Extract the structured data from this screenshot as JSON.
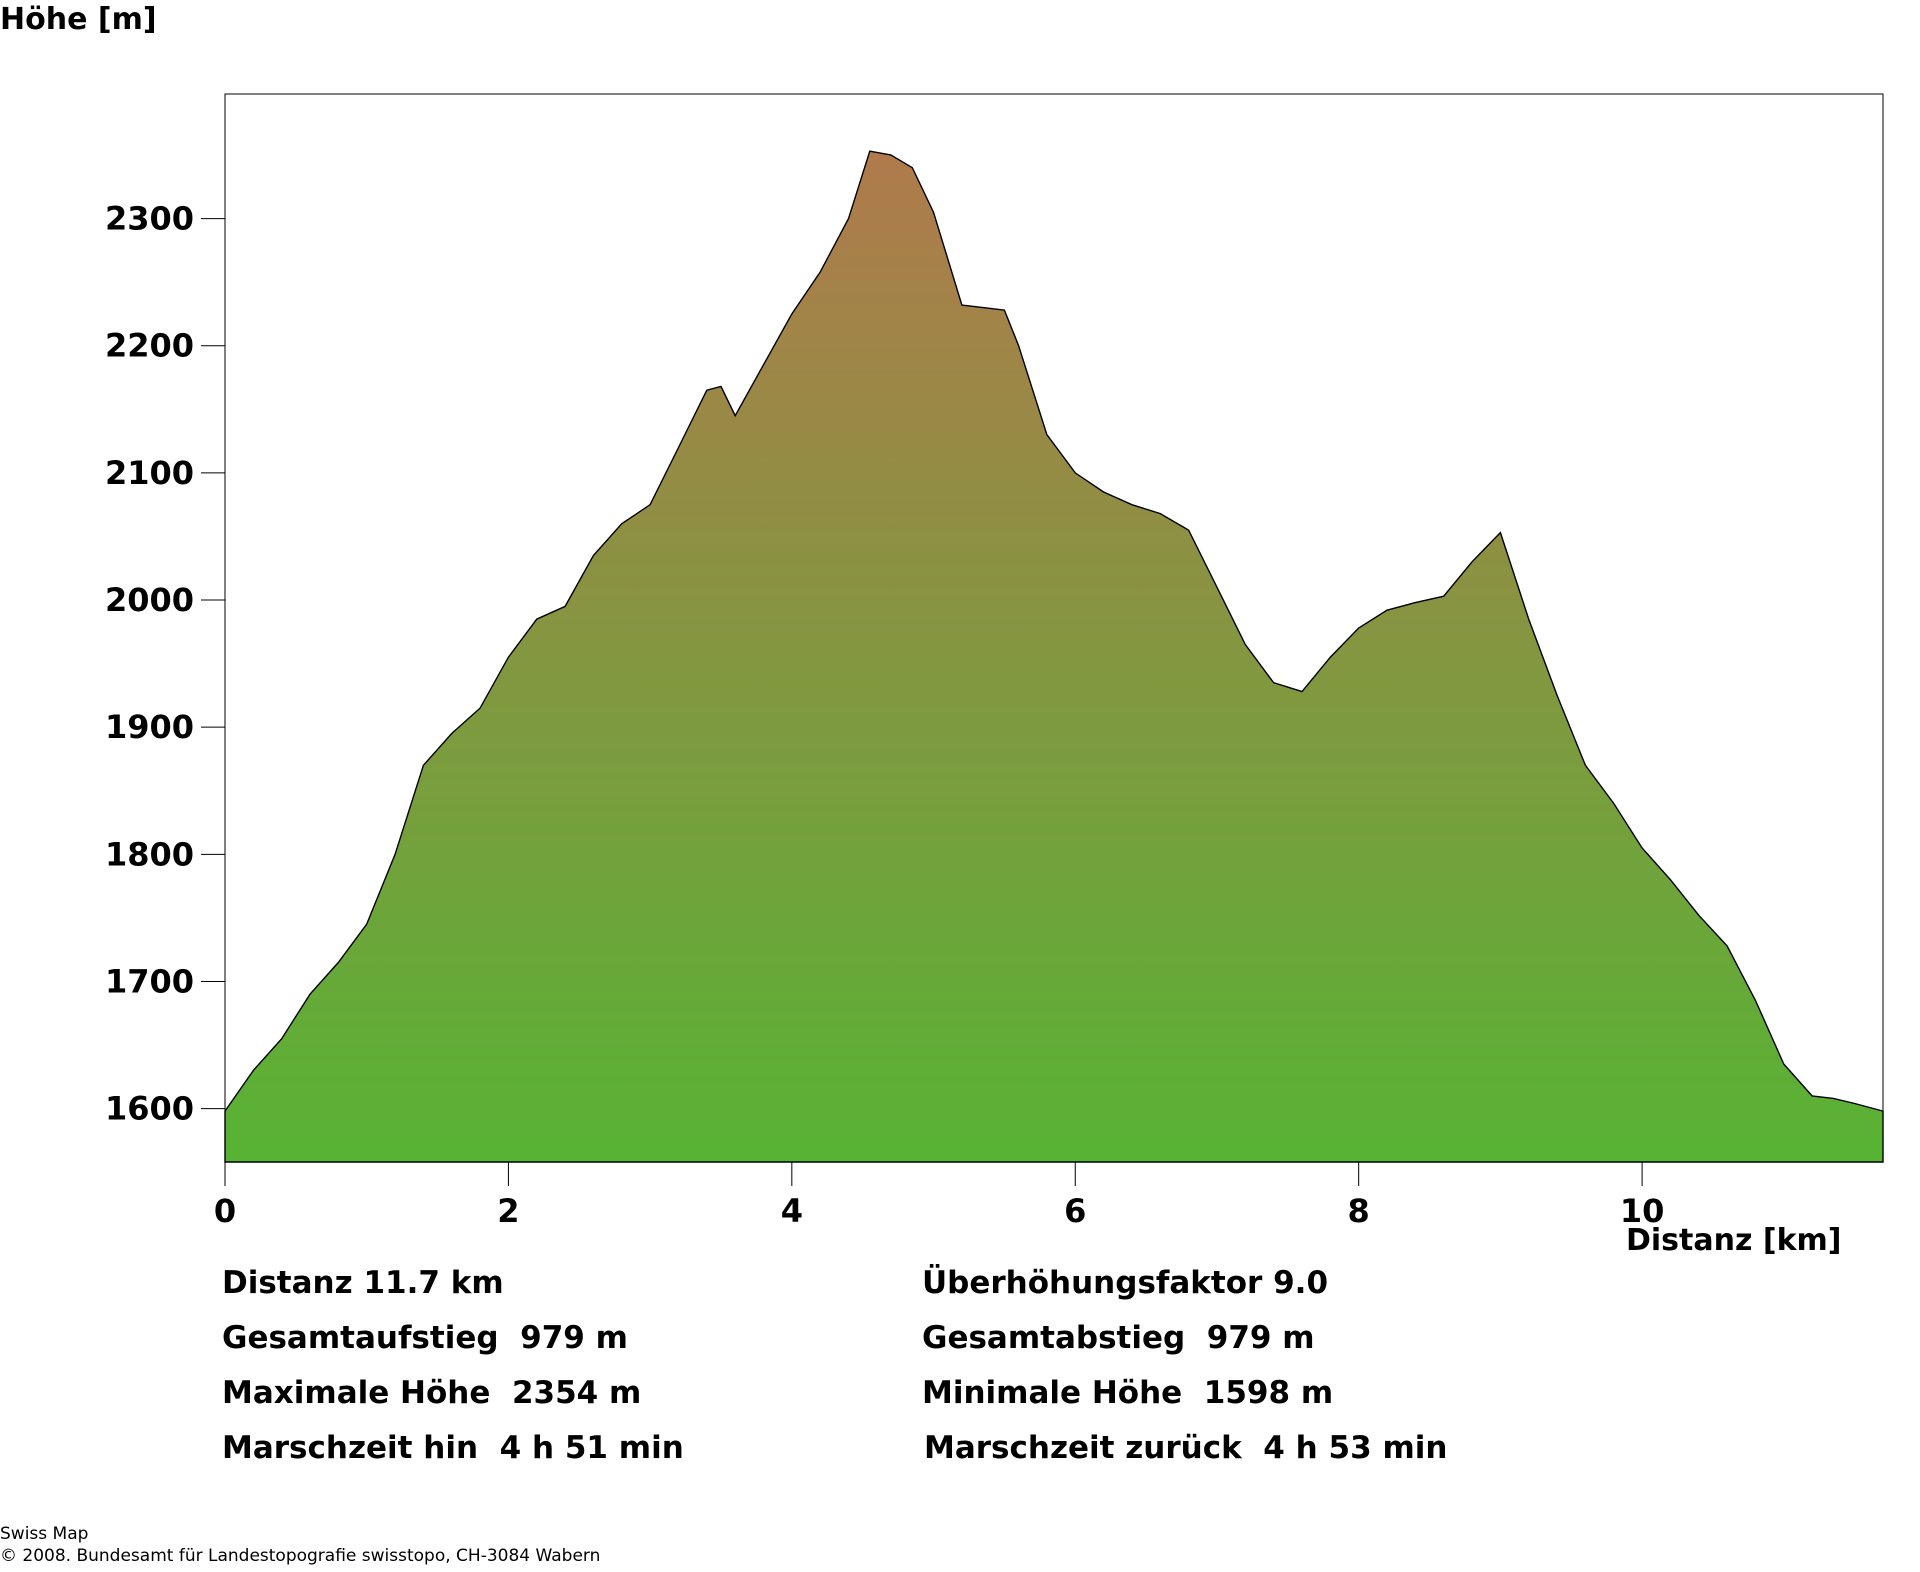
{
  "chart_data": {
    "type": "area",
    "ylabel": "Höhe [m]",
    "xlabel": "Distanz [km]",
    "xlim": [
      0,
      11.7
    ],
    "ylim": [
      1558,
      2398
    ],
    "xticks": [
      0,
      2,
      4,
      6,
      8,
      10
    ],
    "yticks": [
      1600,
      1700,
      1800,
      1900,
      2000,
      2100,
      2200,
      2300
    ],
    "grid": false,
    "legend": "none",
    "fill_gradient": {
      "top": "#b07a4c",
      "bottom": "#57b334"
    },
    "x": [
      0,
      0.2,
      0.4,
      0.6,
      0.8,
      1.0,
      1.2,
      1.4,
      1.6,
      1.8,
      2.0,
      2.2,
      2.4,
      2.6,
      2.8,
      3.0,
      3.2,
      3.4,
      3.5,
      3.6,
      3.8,
      4.0,
      4.2,
      4.4,
      4.55,
      4.7,
      4.85,
      5.0,
      5.2,
      5.35,
      5.5,
      5.6,
      5.8,
      6.0,
      6.2,
      6.4,
      6.6,
      6.8,
      7.0,
      7.2,
      7.4,
      7.6,
      7.8,
      8.0,
      8.2,
      8.4,
      8.6,
      8.8,
      9.0,
      9.2,
      9.4,
      9.6,
      9.8,
      10.0,
      10.2,
      10.4,
      10.6,
      10.8,
      11.0,
      11.2,
      11.35,
      11.5,
      11.7
    ],
    "y": [
      1598,
      1630,
      1655,
      1690,
      1715,
      1745,
      1800,
      1870,
      1895,
      1915,
      1955,
      1985,
      1995,
      2035,
      2060,
      2075,
      2120,
      2165,
      2168,
      2145,
      2185,
      2225,
      2258,
      2300,
      2353,
      2350,
      2340,
      2305,
      2232,
      2230,
      2228,
      2200,
      2130,
      2100,
      2085,
      2075,
      2068,
      2055,
      2010,
      1965,
      1935,
      1928,
      1955,
      1978,
      1992,
      1998,
      2003,
      2030,
      2053,
      1985,
      1925,
      1870,
      1840,
      1805,
      1780,
      1752,
      1728,
      1685,
      1635,
      1610,
      1608,
      1604,
      1598
    ]
  },
  "stats": {
    "distance": "Distanz 11.7 km",
    "exaggeration": "Überhöhungsfaktor 9.0",
    "ascent": "Gesamtaufstieg  979 m",
    "descent": "Gesamtabstieg  979 m",
    "max_height": "Maximale Höhe  2354 m",
    "min_height": "Minimale Höhe  1598 m",
    "time_there": "Marschzeit hin  4 h 51 min",
    "time_back": "Marschzeit zurück  4 h 53 min"
  },
  "footer": {
    "line1": "Swiss Map",
    "line2": "© 2008. Bundesamt für Landestopografie swisstopo, CH-3084 Wabern"
  }
}
